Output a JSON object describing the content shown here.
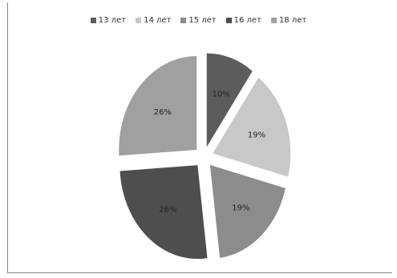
{
  "chart_data": {
    "type": "pie",
    "exploded": true,
    "categories": [
      "13 лет",
      "14 лет",
      "15 лет",
      "16 лет",
      "18 лет"
    ],
    "values": [
      10,
      19,
      19,
      26,
      26
    ],
    "data_labels": [
      "10%",
      "19%",
      "19%",
      "26%",
      "26%"
    ],
    "colors": [
      "#5c5c5c",
      "#c8c8c8",
      "#8c8c8c",
      "#4e4e4e",
      "#a0a0a0"
    ],
    "legend_position": "top"
  }
}
